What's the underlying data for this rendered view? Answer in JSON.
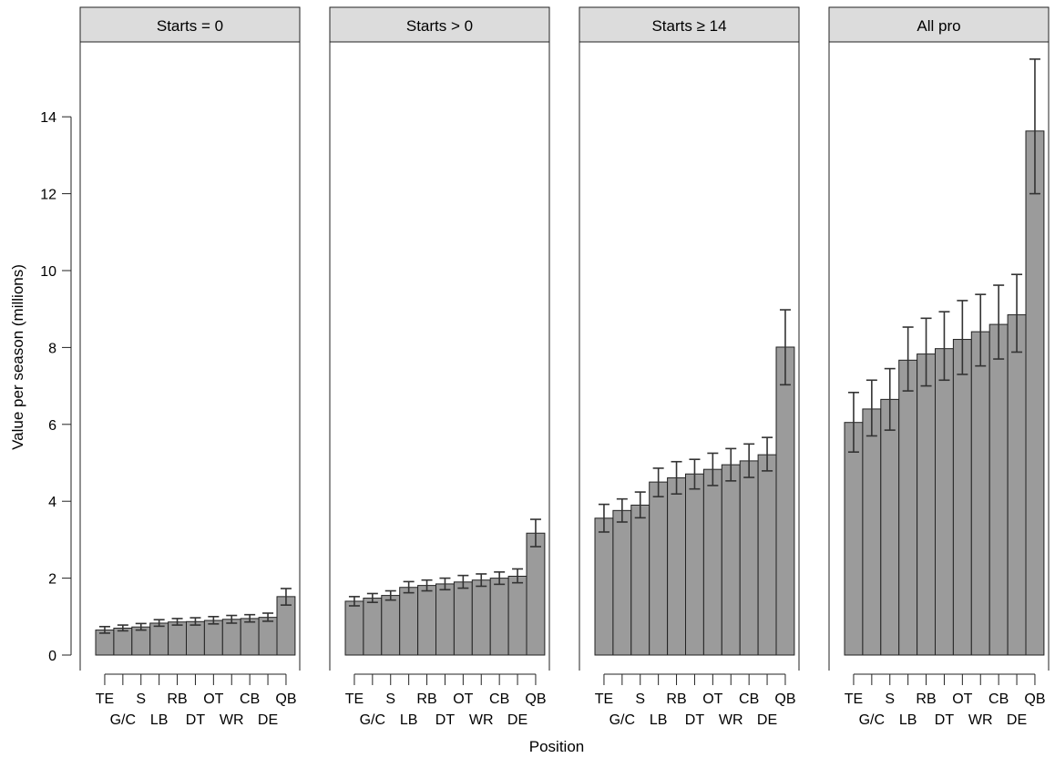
{
  "chart_data": {
    "type": "bar",
    "ylabel": "Value per season (millions)",
    "xlabel": "Position",
    "ylim": [
      0,
      15.5
    ],
    "yticks": [
      0,
      2,
      4,
      6,
      8,
      10,
      12,
      14
    ],
    "categories": [
      "TE",
      "G/C",
      "S",
      "LB",
      "RB",
      "DT",
      "OT",
      "WR",
      "CB",
      "DE",
      "QB"
    ],
    "bar_color": "#9b9b9b",
    "strip_color": "#dcdcdc",
    "error_bars": true,
    "panels": [
      {
        "title": "Starts = 0",
        "values": [
          0.65,
          0.7,
          0.73,
          0.83,
          0.86,
          0.87,
          0.9,
          0.93,
          0.95,
          0.98,
          1.52
        ],
        "err_low": [
          0.57,
          0.63,
          0.65,
          0.75,
          0.78,
          0.78,
          0.81,
          0.83,
          0.86,
          0.88,
          1.3
        ],
        "err_high": [
          0.74,
          0.78,
          0.82,
          0.92,
          0.95,
          0.97,
          1.0,
          1.03,
          1.05,
          1.09,
          1.73
        ]
      },
      {
        "title": "Starts > 0",
        "values": [
          1.4,
          1.48,
          1.55,
          1.76,
          1.81,
          1.85,
          1.9,
          1.95,
          2.0,
          2.05,
          3.17
        ],
        "err_low": [
          1.28,
          1.37,
          1.43,
          1.62,
          1.67,
          1.7,
          1.74,
          1.79,
          1.84,
          1.88,
          2.82
        ],
        "err_high": [
          1.52,
          1.6,
          1.67,
          1.91,
          1.95,
          2.0,
          2.07,
          2.11,
          2.16,
          2.24,
          3.53
        ]
      },
      {
        "title": "Starts ≥ 14",
        "values": [
          3.56,
          3.76,
          3.9,
          4.5,
          4.61,
          4.71,
          4.83,
          4.95,
          5.05,
          5.21,
          8.01
        ],
        "err_low": [
          3.2,
          3.46,
          3.57,
          4.12,
          4.19,
          4.32,
          4.41,
          4.53,
          4.62,
          4.79,
          7.03
        ],
        "err_high": [
          3.92,
          4.06,
          4.24,
          4.86,
          5.03,
          5.09,
          5.25,
          5.37,
          5.49,
          5.66,
          8.98
        ]
      },
      {
        "title": "All pro",
        "values": [
          6.05,
          6.4,
          6.65,
          7.67,
          7.83,
          7.97,
          8.21,
          8.41,
          8.6,
          8.85,
          13.63
        ],
        "err_low": [
          5.28,
          5.7,
          5.85,
          6.87,
          7.0,
          7.15,
          7.3,
          7.52,
          7.7,
          7.88,
          12.0
        ],
        "err_high": [
          6.83,
          7.15,
          7.45,
          8.53,
          8.76,
          8.93,
          9.22,
          9.38,
          9.62,
          9.9,
          15.5
        ]
      }
    ]
  }
}
